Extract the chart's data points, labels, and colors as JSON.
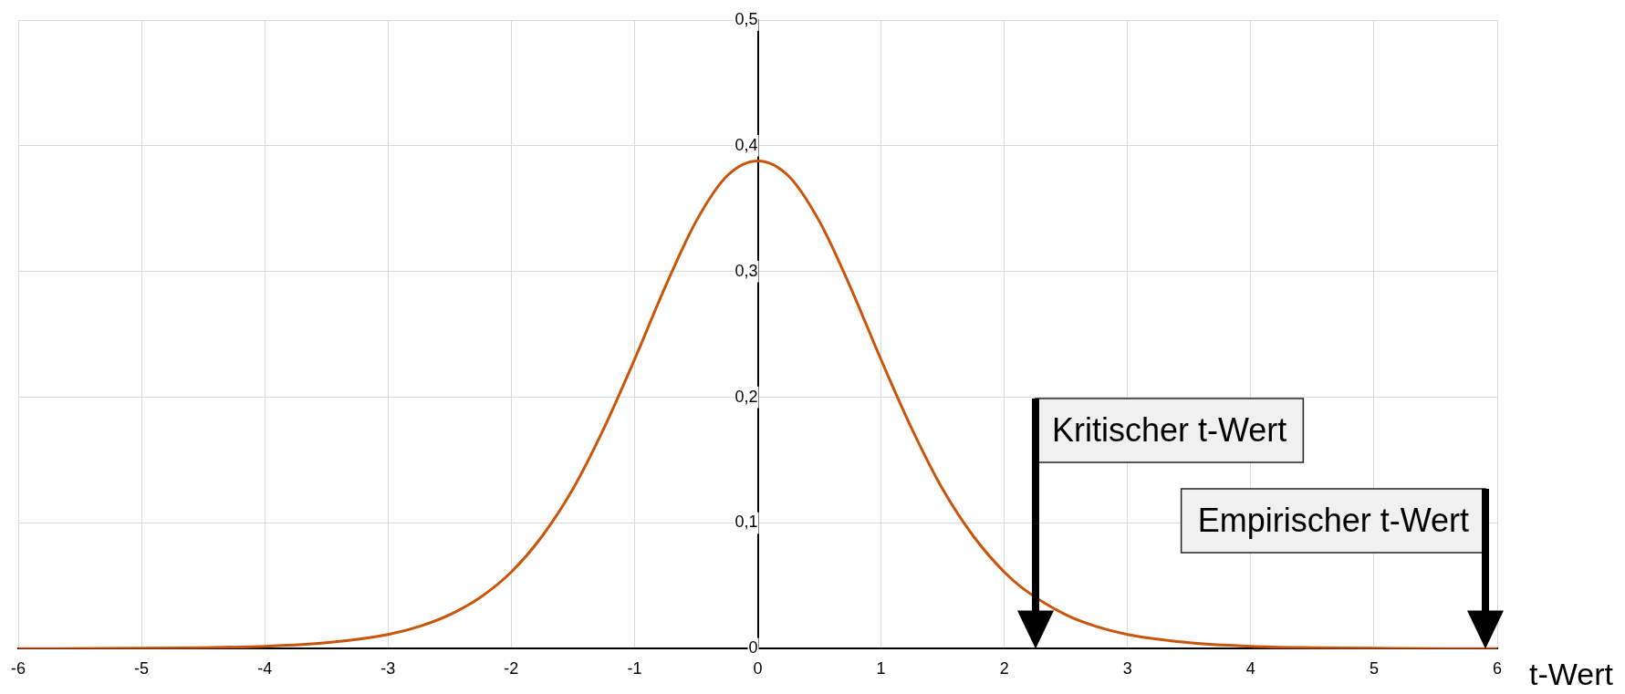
{
  "chart_data": {
    "type": "line",
    "xlabel": "t-Wert",
    "x": [
      -6,
      -5,
      -4.5,
      -4,
      -3.5,
      -3,
      -2.75,
      -2.5,
      -2.25,
      -2,
      -1.75,
      -1.5,
      -1.25,
      -1,
      -0.75,
      -0.5,
      -0.25,
      0,
      0.25,
      0.5,
      0.75,
      1,
      1.25,
      1.5,
      1.75,
      2,
      2.15,
      2.5,
      2.75,
      3,
      3.5,
      4,
      4.5,
      5,
      6
    ],
    "series": [
      {
        "color": "#c9540a",
        "values": [
          0.0001,
          0.0004,
          0.0009,
          0.002,
          0.0048,
          0.0114,
          0.0176,
          0.027,
          0.0409,
          0.061,
          0.0895,
          0.127,
          0.175,
          0.23,
          0.288,
          0.34,
          0.376,
          0.388,
          0.376,
          0.34,
          0.288,
          0.23,
          0.175,
          0.127,
          0.0895,
          0.061,
          0.0481,
          0.027,
          0.0176,
          0.0114,
          0.0048,
          0.002,
          0.0009,
          0.0004,
          0.0001
        ]
      }
    ],
    "xlim": [
      -6,
      6
    ],
    "xticks": [
      -6,
      -5,
      -4,
      -3,
      -2,
      -1,
      0,
      1,
      2,
      3,
      4,
      5,
      6
    ],
    "ylim": [
      0,
      0.5
    ],
    "yticks": [
      {
        "value": 0,
        "label": "0"
      },
      {
        "value": 0.1,
        "label": "0,1"
      },
      {
        "value": 0.2,
        "label": "0,2"
      },
      {
        "value": 0.3,
        "label": "0,3"
      },
      {
        "value": 0.4,
        "label": "0,4"
      },
      {
        "value": 0.5,
        "label": "0,5"
      }
    ],
    "grid": true,
    "legend": false,
    "marker": "none",
    "line_style": "solid",
    "annotations": [
      "Kritischer t-Wert",
      "Empirischer t-Wert"
    ]
  }
}
